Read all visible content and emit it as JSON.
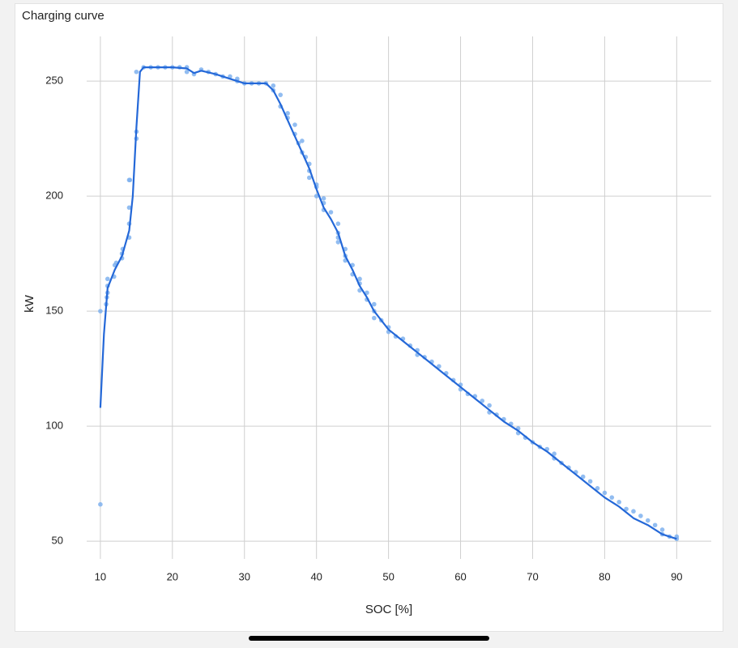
{
  "chart_data": {
    "type": "scatter",
    "title": "Charging curve",
    "x_label": "SOC [%]",
    "y_label": "kW",
    "xlim": [
      8.1,
      94.8
    ],
    "ylim": [
      42.3,
      269.4
    ],
    "xticks": [
      10,
      20,
      30,
      40,
      50,
      60,
      70,
      80,
      90
    ],
    "yticks": [
      50,
      100,
      150,
      200,
      250
    ],
    "grid": true,
    "points": {
      "color": "#7fb1ef",
      "x": [
        10,
        10,
        10.8,
        10.9,
        11,
        11,
        11,
        11.9,
        12,
        12.2,
        13,
        13,
        13.1,
        14,
        14,
        14,
        14,
        14.1,
        15,
        15,
        15,
        16,
        17,
        18,
        19,
        20,
        21,
        22,
        22,
        23,
        24,
        25,
        26,
        27,
        28,
        29,
        29,
        30,
        31,
        32,
        33,
        34,
        34,
        35,
        35,
        36,
        36,
        37,
        37,
        37.5,
        38,
        38,
        38.5,
        39,
        39,
        39,
        40,
        40,
        40,
        41,
        41,
        41,
        42,
        43,
        43,
        43,
        43,
        44,
        44,
        44,
        45,
        45,
        46,
        46,
        46,
        47,
        47,
        48,
        48,
        48,
        49,
        50,
        50,
        51,
        52,
        53,
        54,
        54,
        55,
        56,
        57,
        58,
        59,
        60,
        60,
        61,
        62,
        63,
        64,
        64,
        65,
        66,
        67,
        68,
        68,
        69,
        70,
        71,
        72,
        73,
        73,
        74,
        75,
        76,
        77,
        78,
        79,
        80,
        81,
        82,
        83,
        84,
        85,
        86,
        87,
        88,
        88,
        89,
        90,
        90
      ],
      "y": [
        66,
        150,
        153,
        156,
        158,
        161,
        164,
        165,
        170,
        171,
        173,
        175,
        177,
        182,
        188,
        195,
        207,
        207,
        225,
        228,
        254,
        256,
        256,
        256,
        256,
        256,
        256,
        256,
        254,
        253,
        255,
        254,
        253,
        252,
        252,
        251,
        250,
        249,
        249,
        249,
        249,
        248,
        246,
        244,
        239,
        236,
        234,
        231,
        227,
        223,
        219,
        224,
        217,
        214,
        211,
        208,
        205,
        200,
        204,
        199,
        194,
        197,
        193,
        188,
        184,
        180,
        182,
        177,
        174,
        172,
        170,
        166,
        164,
        162,
        159,
        158,
        155,
        153,
        150,
        147,
        146,
        143,
        141,
        139,
        138,
        135,
        133,
        131,
        130,
        128,
        126,
        123,
        120,
        118,
        116,
        114,
        113,
        111,
        109,
        106,
        105,
        103,
        101,
        99,
        97,
        95,
        93,
        91,
        90,
        88,
        86,
        84,
        82,
        80,
        78,
        76,
        73,
        71,
        69,
        67,
        64,
        63,
        61,
        59,
        57,
        55,
        53,
        52,
        52,
        51
      ]
    },
    "line": {
      "color": "#2468d8",
      "x": [
        10,
        10.5,
        11,
        12,
        13,
        14,
        14.5,
        15,
        15.5,
        16,
        18,
        20,
        22,
        23,
        24,
        26,
        28,
        30,
        32,
        33,
        34,
        35,
        36,
        37,
        38,
        39,
        40,
        41,
        42,
        43,
        44,
        45,
        46,
        47,
        48,
        49,
        50,
        52,
        54,
        56,
        58,
        60,
        62,
        64,
        66,
        68,
        70,
        72,
        74,
        76,
        78,
        80,
        82,
        84,
        86,
        88,
        90
      ],
      "y": [
        108,
        140,
        160,
        168,
        174,
        185,
        200,
        230,
        254,
        256,
        256,
        256,
        255.5,
        253.5,
        254.5,
        253,
        251,
        249,
        249,
        249,
        246,
        240,
        233,
        226,
        219,
        212,
        203,
        195,
        190,
        184,
        174,
        168,
        161,
        156,
        150,
        146,
        142,
        137,
        132,
        127,
        122,
        117,
        112,
        107,
        102,
        98,
        93,
        89,
        84,
        79,
        74,
        69,
        65,
        60,
        57,
        53,
        51
      ]
    }
  }
}
